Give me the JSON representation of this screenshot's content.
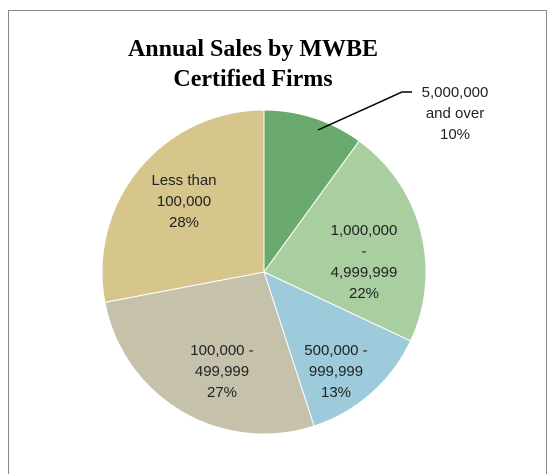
{
  "chart_data": {
    "type": "pie",
    "title": "Annual Sales by MWBE Certified Firms",
    "categories": [
      "5,000,000 and over",
      "1,000,000 - 4,999,999",
      "500,000 - 999,999",
      "100,000 - 499,999",
      "Less than 100,000"
    ],
    "values": [
      10,
      22,
      13,
      27,
      28
    ],
    "value_labels": [
      "10%",
      "22%",
      "13%",
      "27%",
      "28%"
    ],
    "colors": [
      "#6aaa6e",
      "#a9cea0",
      "#9ecbdc",
      "#c6c1aa",
      "#d6c68c"
    ]
  }
}
